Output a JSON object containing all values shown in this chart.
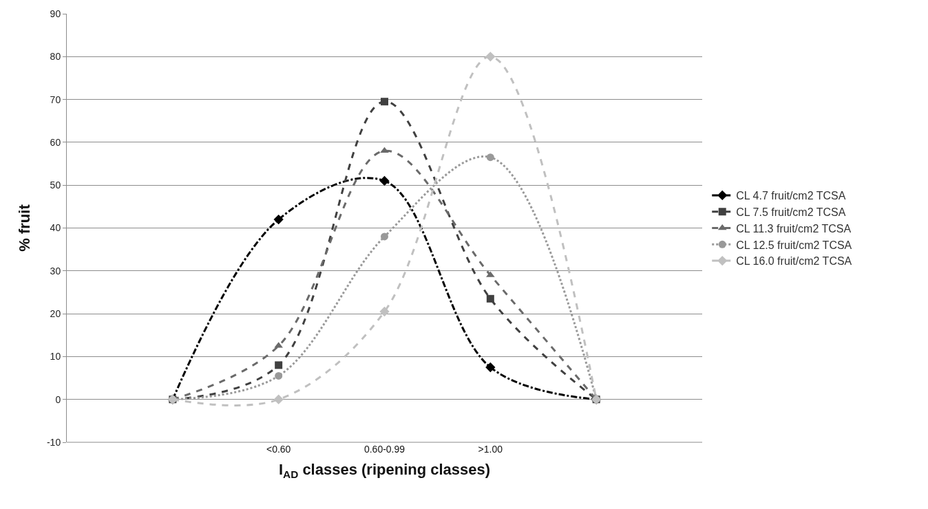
{
  "chart_data": {
    "type": "line",
    "xlabel": "I$_{AD}$ classes (ripening classes)",
    "ylabel": "% fruit",
    "categories": [
      null,
      "<0.60",
      "0.60-0.99",
      ">1.00",
      null
    ],
    "series": [
      {
        "name": "CL 4.7 fruit/cm2 TCSA",
        "color": "#000000",
        "marker": "diamond",
        "line_style": "dashdot",
        "values": [
          0,
          42,
          51,
          7.5,
          0
        ]
      },
      {
        "name": "CL 7.5 fruit/cm2 TCSA",
        "color": "#404040",
        "marker": "square",
        "line_style": "dashed",
        "values": [
          0,
          8,
          69.5,
          23.5,
          0
        ]
      },
      {
        "name": "CL 11.3 fruit/cm2 TCSA",
        "color": "#6a6a6a",
        "marker": "triangle",
        "line_style": "dashed",
        "values": [
          0,
          12.5,
          58,
          29,
          0
        ]
      },
      {
        "name": "CL 12.5 fruit/cm2 TCSA",
        "color": "#999999",
        "marker": "circle",
        "line_style": "dotted",
        "values": [
          0,
          5.5,
          38,
          56.5,
          0
        ]
      },
      {
        "name": "CL 16.0 fruit/cm2 TCSA",
        "color": "#c0c0c0",
        "marker": "diamond",
        "line_style": "dashed",
        "values": [
          0,
          0,
          20.5,
          80,
          0
        ]
      }
    ],
    "ylim": [
      -10,
      90
    ],
    "yticks": [
      -10,
      0,
      10,
      20,
      30,
      40,
      50,
      60,
      70,
      80,
      90
    ],
    "grid": "y",
    "legend": "right"
  }
}
